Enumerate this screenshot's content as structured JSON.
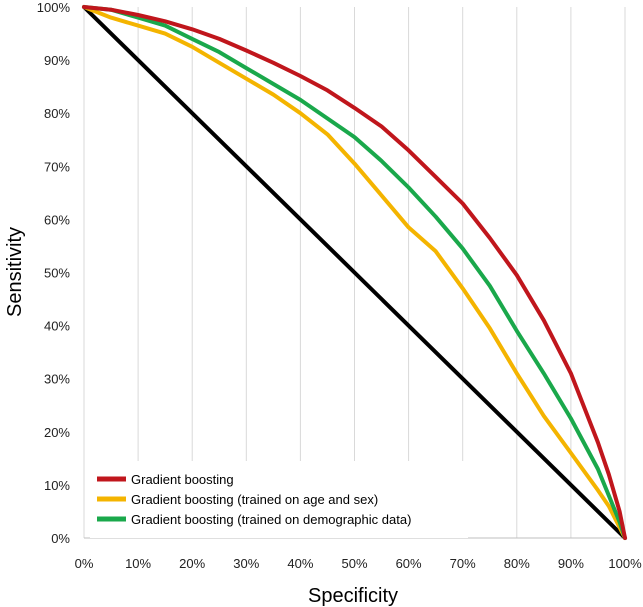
{
  "chart_data": {
    "type": "line",
    "xlabel": "Specificity",
    "ylabel": "Sensitivity",
    "xlim": [
      0,
      100
    ],
    "ylim": [
      0,
      100
    ],
    "x_ticks": [
      "0%",
      "10%",
      "20%",
      "30%",
      "40%",
      "50%",
      "60%",
      "70%",
      "80%",
      "90%",
      "100%"
    ],
    "y_ticks": [
      "0%",
      "10%",
      "20%",
      "30%",
      "40%",
      "50%",
      "60%",
      "70%",
      "80%",
      "90%",
      "100%"
    ],
    "grid": "vertical",
    "legend_position": "bottom-left",
    "series": [
      {
        "name": "Gradient boosting",
        "color": "#c0161c",
        "x": [
          0,
          5,
          10,
          15,
          20,
          25,
          30,
          35,
          40,
          45,
          50,
          55,
          60,
          65,
          70,
          75,
          80,
          85,
          90,
          95,
          97,
          99,
          100
        ],
        "y": [
          100,
          99.5,
          98.5,
          97.3,
          95.8,
          94,
          91.8,
          89.5,
          87,
          84.3,
          81,
          77.5,
          73,
          68,
          63,
          56.5,
          49.5,
          41,
          31,
          18,
          12,
          5,
          0
        ]
      },
      {
        "name": "Gradient boosting (trained on age and sex)",
        "color": "#f4b400",
        "x": [
          0,
          5,
          10,
          15,
          20,
          25,
          30,
          35,
          40,
          45,
          50,
          55,
          60,
          65,
          70,
          75,
          80,
          85,
          90,
          95,
          97,
          99,
          100
        ],
        "y": [
          100,
          98,
          96.5,
          95,
          92.5,
          89.5,
          86.5,
          83.5,
          80,
          76,
          70.5,
          64.5,
          58.5,
          54,
          47,
          39.5,
          31,
          23,
          16,
          9,
          6,
          2,
          0
        ]
      },
      {
        "name": "Gradient boosting (trained on demographic data)",
        "color": "#1aa84b",
        "x": [
          0,
          5,
          10,
          15,
          20,
          25,
          30,
          35,
          40,
          45,
          50,
          55,
          60,
          65,
          70,
          75,
          80,
          85,
          90,
          95,
          97,
          99,
          100
        ],
        "y": [
          100,
          99.5,
          98,
          96.5,
          94,
          91.5,
          88.5,
          85.5,
          82.5,
          79,
          75.5,
          71,
          66,
          60.5,
          54.5,
          47.5,
          39,
          31,
          22.5,
          13,
          8,
          3,
          0
        ]
      },
      {
        "name": "",
        "color": "#000000",
        "x": [
          0,
          100
        ],
        "y": [
          100,
          0
        ]
      }
    ]
  }
}
